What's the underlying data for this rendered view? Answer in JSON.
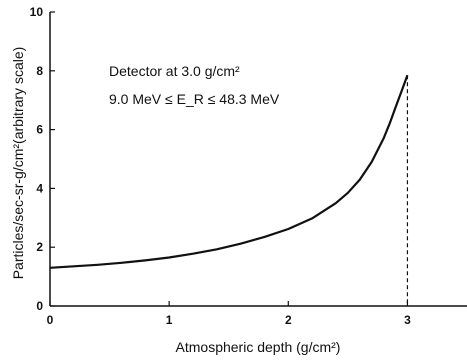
{
  "chart_data": {
    "type": "line",
    "xlabel": "Atmospheric depth (g/cm²)",
    "ylabel": "Particles/sec-sr-g/cm²(arbitrary scale)",
    "xlim": [
      0,
      3.5
    ],
    "ylim": [
      0,
      10
    ],
    "xticks": [
      0,
      1,
      2,
      3
    ],
    "yticks": [
      0,
      2,
      4,
      6,
      8,
      10
    ],
    "grid": false,
    "annotations": [
      "Detector at 3.0 g/cm²",
      "9.0 MeV ≤ E_R ≤ 48.3 MeV"
    ],
    "series": [
      {
        "x": [
          0,
          0.2,
          0.4,
          0.6,
          0.8,
          1.0,
          1.2,
          1.4,
          1.6,
          1.8,
          2.0,
          2.2,
          2.4,
          2.5,
          2.6,
          2.7,
          2.8,
          2.85,
          2.9,
          2.95,
          3.0
        ],
        "y": [
          1.3,
          1.35,
          1.4,
          1.47,
          1.55,
          1.65,
          1.78,
          1.93,
          2.12,
          2.35,
          2.62,
          2.98,
          3.5,
          3.85,
          4.3,
          4.9,
          5.7,
          6.2,
          6.75,
          7.3,
          7.85
        ]
      }
    ],
    "vertical_marker": {
      "x": 3.0,
      "style": "dashed"
    }
  }
}
